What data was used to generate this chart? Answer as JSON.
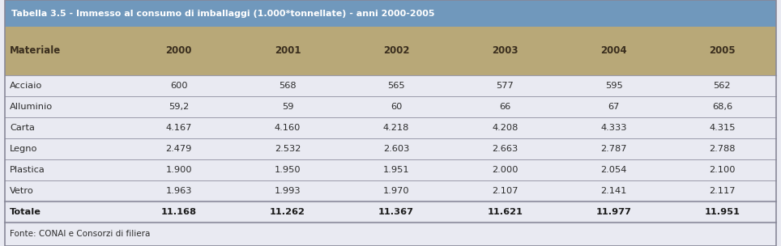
{
  "title": "Tabella 3.5 - Immesso al consumo di imballaggi (1.000*tonnellate) - anni 2000-2005",
  "columns": [
    "Materiale",
    "2000",
    "2001",
    "2002",
    "2003",
    "2004",
    "2005"
  ],
  "rows": [
    [
      "Acciaio",
      "600",
      "568",
      "565",
      "577",
      "595",
      "562"
    ],
    [
      "Alluminio",
      "59,2",
      "59",
      "60",
      "66",
      "67",
      "68,6"
    ],
    [
      "Carta",
      "4.167",
      "4.160",
      "4.218",
      "4.208",
      "4.333",
      "4.315"
    ],
    [
      "Legno",
      "2.479",
      "2.532",
      "2.603",
      "2.663",
      "2.787",
      "2.788"
    ],
    [
      "Plastica",
      "1.900",
      "1.950",
      "1.951",
      "2.000",
      "2.054",
      "2.100"
    ],
    [
      "Vetro",
      "1.963",
      "1.993",
      "1.970",
      "2.107",
      "2.141",
      "2.117"
    ]
  ],
  "totale_row": [
    "Totale",
    "11.168",
    "11.262",
    "11.367",
    "11.621",
    "11.977",
    "11.951"
  ],
  "footer": "Fonte: CONAI e Consorzi di filiera",
  "header_bg": "#7098bc",
  "subheader_bg": "#b8a878",
  "data_bg": "#e9eaf2",
  "title_color": "#ffffff",
  "subheader_color": "#3a2e1e",
  "data_color": "#2c2c2c",
  "totale_color": "#1a1a1a",
  "line_color": "#9a9aaa",
  "outer_border_color": "#888898",
  "fig_width": 9.64,
  "fig_height": 3.04,
  "dpi": 100
}
